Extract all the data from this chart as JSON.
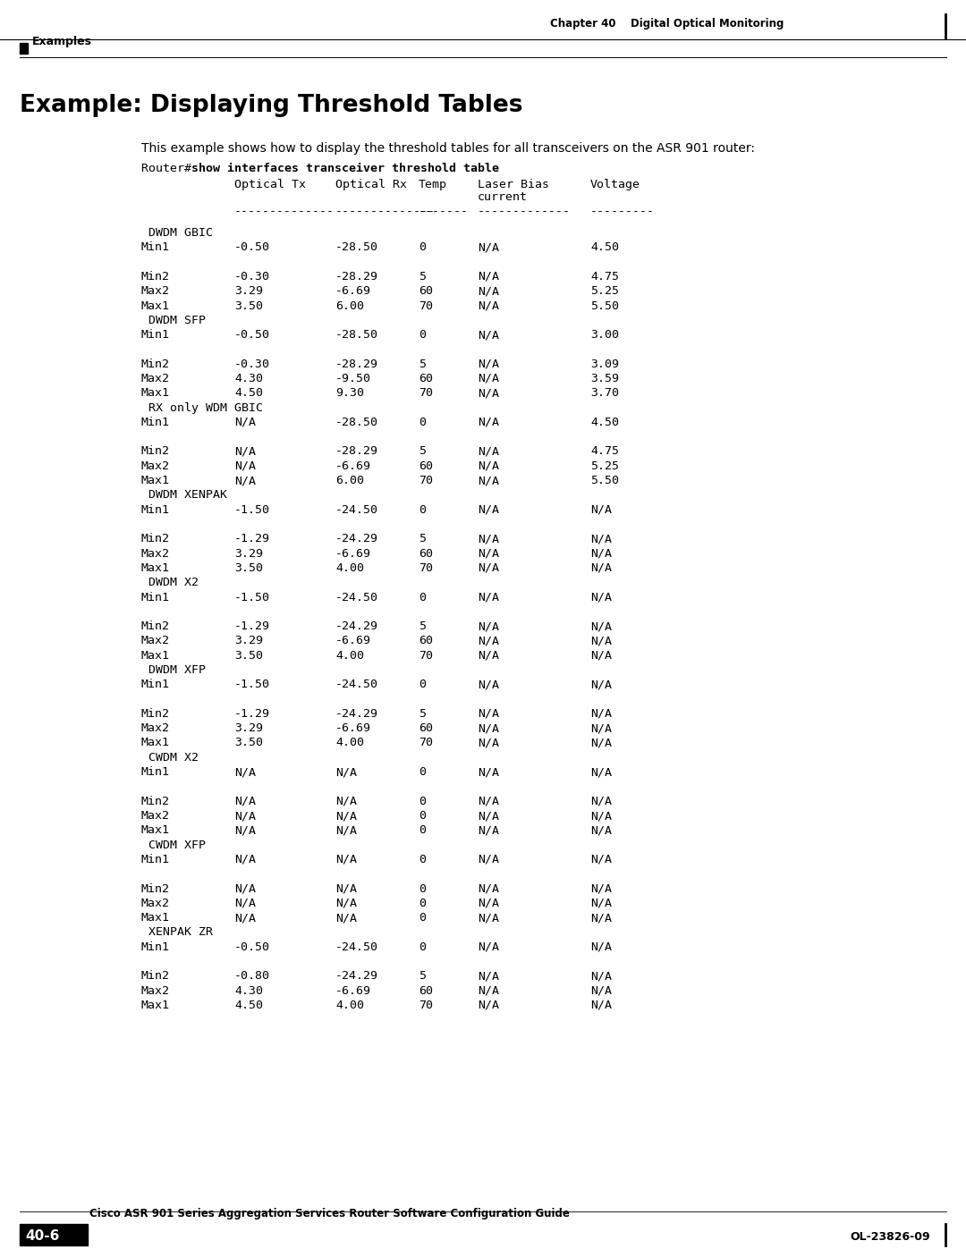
{
  "page_title_right": "Chapter 40    Digital Optical Monitoring",
  "section_label": "Examples",
  "main_title": "Example: Displaying Threshold Tables",
  "intro_text": "This example shows how to display the threshold tables for all transceivers on the ASR 901 router:",
  "command_prefix": "Router# ",
  "command_bold": "show interfaces transceiver threshold table",
  "footer_title": "Cisco ASR 901 Series Aggregation Services Router Software Configuration Guide",
  "footer_page": "40-6",
  "footer_right": "OL-23826-09",
  "table_content": [
    {
      "section": true,
      "label": "DWDM GBIC",
      "cols": [
        "",
        "",
        "",
        "",
        ""
      ]
    },
    {
      "section": false,
      "label": "Min1",
      "cols": [
        "-0.50",
        "-28.50",
        "0",
        "N/A",
        "4.50"
      ]
    },
    {
      "section": false,
      "label": "",
      "cols": [
        "",
        "",
        "",
        "",
        ""
      ]
    },
    {
      "section": false,
      "label": "Min2",
      "cols": [
        "-0.30",
        "-28.29",
        "5",
        "N/A",
        "4.75"
      ]
    },
    {
      "section": false,
      "label": "Max2",
      "cols": [
        "3.29",
        "-6.69",
        "60",
        "N/A",
        "5.25"
      ]
    },
    {
      "section": false,
      "label": "Max1",
      "cols": [
        "3.50",
        "6.00",
        "70",
        "N/A",
        "5.50"
      ]
    },
    {
      "section": true,
      "label": "DWDM SFP",
      "cols": [
        "",
        "",
        "",
        "",
        ""
      ]
    },
    {
      "section": false,
      "label": "Min1",
      "cols": [
        "-0.50",
        "-28.50",
        "0",
        "N/A",
        "3.00"
      ]
    },
    {
      "section": false,
      "label": "",
      "cols": [
        "",
        "",
        "",
        "",
        ""
      ]
    },
    {
      "section": false,
      "label": "Min2",
      "cols": [
        "-0.30",
        "-28.29",
        "5",
        "N/A",
        "3.09"
      ]
    },
    {
      "section": false,
      "label": "Max2",
      "cols": [
        "4.30",
        "-9.50",
        "60",
        "N/A",
        "3.59"
      ]
    },
    {
      "section": false,
      "label": "Max1",
      "cols": [
        "4.50",
        "9.30",
        "70",
        "N/A",
        "3.70"
      ]
    },
    {
      "section": true,
      "label": "RX only WDM GBIC",
      "cols": [
        "",
        "",
        "",
        "",
        ""
      ]
    },
    {
      "section": false,
      "label": "Min1",
      "cols": [
        "N/A",
        "-28.50",
        "0",
        "N/A",
        "4.50"
      ]
    },
    {
      "section": false,
      "label": "",
      "cols": [
        "",
        "",
        "",
        "",
        ""
      ]
    },
    {
      "section": false,
      "label": "Min2",
      "cols": [
        "N/A",
        "-28.29",
        "5",
        "N/A",
        "4.75"
      ]
    },
    {
      "section": false,
      "label": "Max2",
      "cols": [
        "N/A",
        "-6.69",
        "60",
        "N/A",
        "5.25"
      ]
    },
    {
      "section": false,
      "label": "Max1",
      "cols": [
        "N/A",
        "6.00",
        "70",
        "N/A",
        "5.50"
      ]
    },
    {
      "section": true,
      "label": "DWDM XENPAK",
      "cols": [
        "",
        "",
        "",
        "",
        ""
      ]
    },
    {
      "section": false,
      "label": "Min1",
      "cols": [
        "-1.50",
        "-24.50",
        "0",
        "N/A",
        "N/A"
      ]
    },
    {
      "section": false,
      "label": "",
      "cols": [
        "",
        "",
        "",
        "",
        ""
      ]
    },
    {
      "section": false,
      "label": "Min2",
      "cols": [
        "-1.29",
        "-24.29",
        "5",
        "N/A",
        "N/A"
      ]
    },
    {
      "section": false,
      "label": "Max2",
      "cols": [
        "3.29",
        "-6.69",
        "60",
        "N/A",
        "N/A"
      ]
    },
    {
      "section": false,
      "label": "Max1",
      "cols": [
        "3.50",
        "4.00",
        "70",
        "N/A",
        "N/A"
      ]
    },
    {
      "section": true,
      "label": "DWDM X2",
      "cols": [
        "",
        "",
        "",
        "",
        ""
      ]
    },
    {
      "section": false,
      "label": "Min1",
      "cols": [
        "-1.50",
        "-24.50",
        "0",
        "N/A",
        "N/A"
      ]
    },
    {
      "section": false,
      "label": "",
      "cols": [
        "",
        "",
        "",
        "",
        ""
      ]
    },
    {
      "section": false,
      "label": "Min2",
      "cols": [
        "-1.29",
        "-24.29",
        "5",
        "N/A",
        "N/A"
      ]
    },
    {
      "section": false,
      "label": "Max2",
      "cols": [
        "3.29",
        "-6.69",
        "60",
        "N/A",
        "N/A"
      ]
    },
    {
      "section": false,
      "label": "Max1",
      "cols": [
        "3.50",
        "4.00",
        "70",
        "N/A",
        "N/A"
      ]
    },
    {
      "section": true,
      "label": "DWDM XFP",
      "cols": [
        "",
        "",
        "",
        "",
        ""
      ]
    },
    {
      "section": false,
      "label": "Min1",
      "cols": [
        "-1.50",
        "-24.50",
        "0",
        "N/A",
        "N/A"
      ]
    },
    {
      "section": false,
      "label": "",
      "cols": [
        "",
        "",
        "",
        "",
        ""
      ]
    },
    {
      "section": false,
      "label": "Min2",
      "cols": [
        "-1.29",
        "-24.29",
        "5",
        "N/A",
        "N/A"
      ]
    },
    {
      "section": false,
      "label": "Max2",
      "cols": [
        "3.29",
        "-6.69",
        "60",
        "N/A",
        "N/A"
      ]
    },
    {
      "section": false,
      "label": "Max1",
      "cols": [
        "3.50",
        "4.00",
        "70",
        "N/A",
        "N/A"
      ]
    },
    {
      "section": true,
      "label": "CWDM X2",
      "cols": [
        "",
        "",
        "",
        "",
        ""
      ]
    },
    {
      "section": false,
      "label": "Min1",
      "cols": [
        "N/A",
        "N/A",
        "0",
        "N/A",
        "N/A"
      ]
    },
    {
      "section": false,
      "label": "",
      "cols": [
        "",
        "",
        "",
        "",
        ""
      ]
    },
    {
      "section": false,
      "label": "Min2",
      "cols": [
        "N/A",
        "N/A",
        "0",
        "N/A",
        "N/A"
      ]
    },
    {
      "section": false,
      "label": "Max2",
      "cols": [
        "N/A",
        "N/A",
        "0",
        "N/A",
        "N/A"
      ]
    },
    {
      "section": false,
      "label": "Max1",
      "cols": [
        "N/A",
        "N/A",
        "0",
        "N/A",
        "N/A"
      ]
    },
    {
      "section": true,
      "label": "CWDM XFP",
      "cols": [
        "",
        "",
        "",
        "",
        ""
      ]
    },
    {
      "section": false,
      "label": "Min1",
      "cols": [
        "N/A",
        "N/A",
        "0",
        "N/A",
        "N/A"
      ]
    },
    {
      "section": false,
      "label": "",
      "cols": [
        "",
        "",
        "",
        "",
        ""
      ]
    },
    {
      "section": false,
      "label": "Min2",
      "cols": [
        "N/A",
        "N/A",
        "0",
        "N/A",
        "N/A"
      ]
    },
    {
      "section": false,
      "label": "Max2",
      "cols": [
        "N/A",
        "N/A",
        "0",
        "N/A",
        "N/A"
      ]
    },
    {
      "section": false,
      "label": "Max1",
      "cols": [
        "N/A",
        "N/A",
        "0",
        "N/A",
        "N/A"
      ]
    },
    {
      "section": true,
      "label": "XENPAK ZR",
      "cols": [
        "",
        "",
        "",
        "",
        ""
      ]
    },
    {
      "section": false,
      "label": "Min1",
      "cols": [
        "-0.50",
        "-24.50",
        "0",
        "N/A",
        "N/A"
      ]
    },
    {
      "section": false,
      "label": "",
      "cols": [
        "",
        "",
        "",
        "",
        ""
      ]
    },
    {
      "section": false,
      "label": "Min2",
      "cols": [
        "-0.80",
        "-24.29",
        "5",
        "N/A",
        "N/A"
      ]
    },
    {
      "section": false,
      "label": "Max2",
      "cols": [
        "4.30",
        "-6.69",
        "60",
        "N/A",
        "N/A"
      ]
    },
    {
      "section": false,
      "label": "Max1",
      "cols": [
        "4.50",
        "4.00",
        "70",
        "N/A",
        "N/A"
      ]
    }
  ]
}
